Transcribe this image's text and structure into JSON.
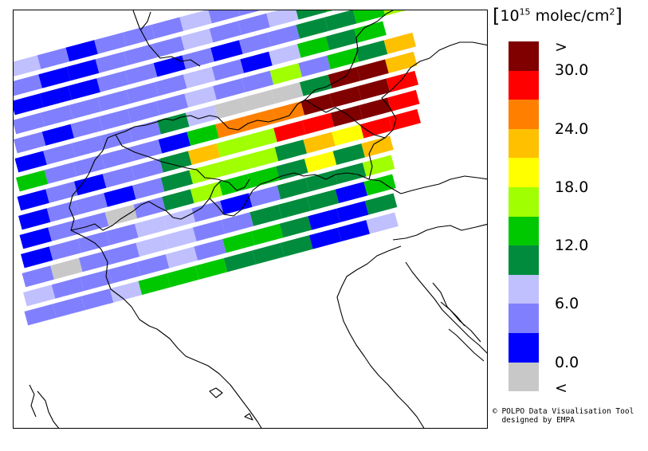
{
  "legend": {
    "unit_prefix": "10",
    "unit_exp": "15",
    "unit_suffix": " molec/cm",
    "unit_sq": "2",
    "colors": [
      "#800000",
      "#ff0000",
      "#ff8000",
      "#ffc000",
      "#ffff00",
      "#a0ff00",
      "#00c800",
      "#008c3c",
      "#c0c0ff",
      "#8080ff",
      "#0000ff",
      "#c8c8c8"
    ],
    "ticks": [
      ">",
      "30.0",
      "24.0",
      "18.0",
      "12.0",
      "6.0",
      "0.0",
      "<"
    ]
  },
  "credit": {
    "line1": "© POLPO Data Visualisation Tool",
    "line2": "designed by EMPA"
  },
  "map": {
    "swath_palette": {
      "B": "#0000ff",
      "M": "#8080ff",
      "L": "#c0c0ff",
      "D": "#008c3c",
      "G": "#00c800",
      "Y": "#a0ff00",
      "E": "#ffff00",
      "A": "#ffc000",
      "O": "#ff8000",
      "R": "#ff0000",
      "K": "#800000",
      "S": "#c8c8c8"
    },
    "swath_rows": [
      "LMBMMMLMMMYAAL",
      "MBBMMMLMMLDGDD",
      "BBBMMBMBMMDDGY",
      "MMMMMMLMBLGDG",
      "MBMMMMLMMYMGDA",
      "BMMMMDLSSSDKKA",
      "GMMMMBGOOOKKKR",
      "BMBMMDAYYRRKKR",
      "BMMBMDYYYDAERR",
      "BMMSMDYGGDEDA",
      "BMMMLLMBMDDDY",
      "MSMMLLMMDDDBG",
      "LMMMMLMGGDBBD",
      "MMMLGGGDDDBBL"
    ]
  }
}
